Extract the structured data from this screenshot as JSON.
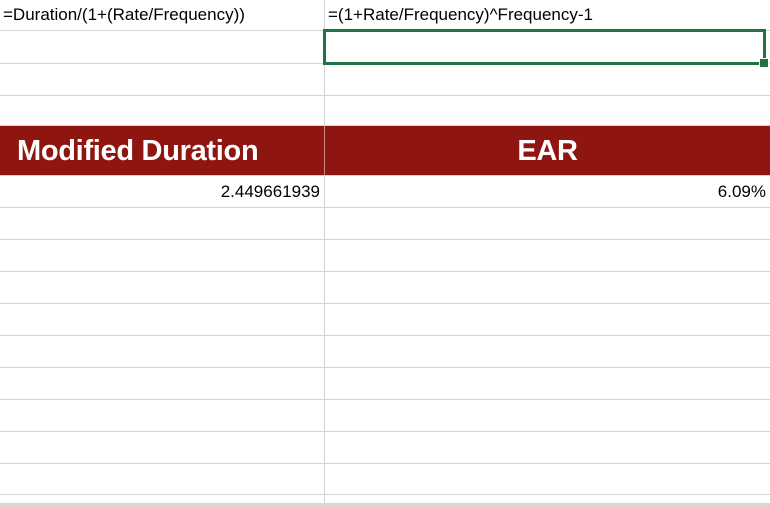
{
  "sheet": {
    "row1": {
      "col_a": "=Duration/(1+(Rate/Frequency))",
      "col_b": "=(1+Rate/Frequency)^Frequency-1"
    },
    "header": {
      "col_a": "Modified Duration",
      "col_b": "EAR"
    },
    "values": {
      "col_a": "2.449661939",
      "col_b": "6.09%"
    }
  },
  "colors": {
    "header_fill": "#8e1510",
    "header_text": "#ffffff",
    "selection_border": "#217346",
    "gridline": "#d4d4d4"
  }
}
